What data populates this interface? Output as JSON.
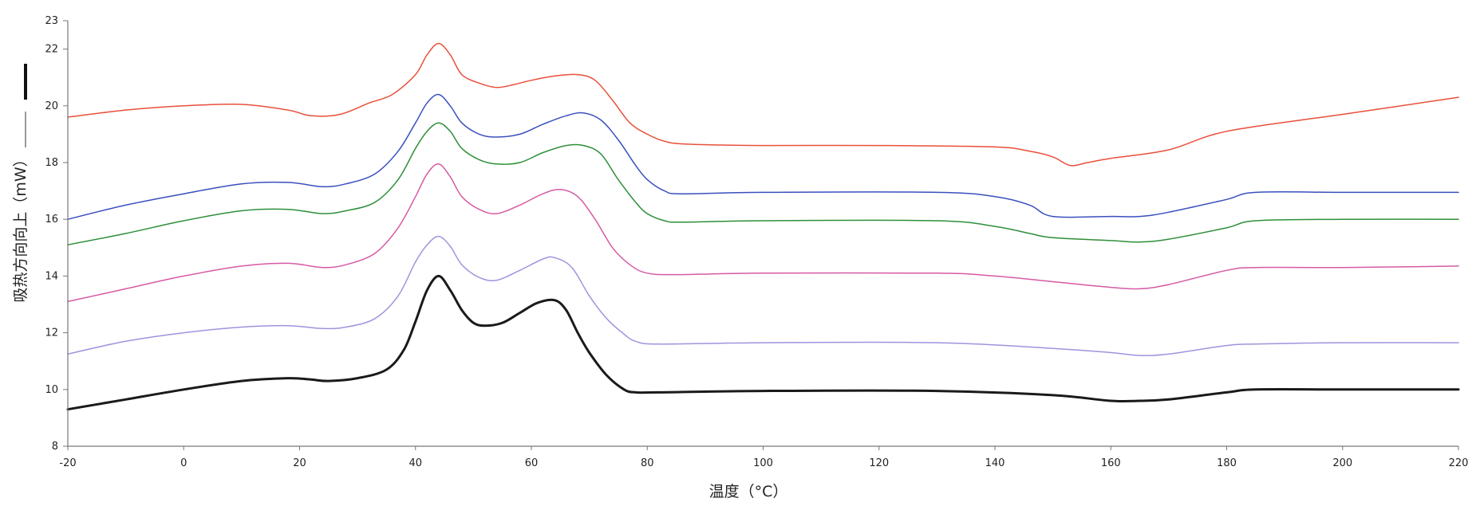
{
  "chart_data": {
    "type": "line",
    "title": "",
    "xlabel": "温度（°C）",
    "ylabel": "吸热方向向上（mW）",
    "xlim": [
      -20,
      220
    ],
    "ylim": [
      8,
      23
    ],
    "x_ticks": [
      -20,
      0,
      20,
      40,
      60,
      80,
      100,
      120,
      140,
      160,
      180,
      200,
      220
    ],
    "y_ticks": [
      8,
      10,
      12,
      14,
      16,
      18,
      20,
      22,
      23
    ],
    "grid": false,
    "legend": "none",
    "series": [
      {
        "color": "#e8503a",
        "stroke": 1.5,
        "x": [
          -20,
          -10,
          0,
          10,
          18,
          22,
          27,
          32,
          36,
          40,
          42,
          44,
          46,
          48,
          51,
          54,
          57,
          60,
          64,
          68,
          71,
          74,
          77,
          80,
          83,
          87,
          100,
          120,
          140,
          146,
          150,
          153,
          156,
          160,
          170,
          180,
          200,
          220
        ],
        "y": [
          19.6,
          19.85,
          20.0,
          20.05,
          19.85,
          19.65,
          19.7,
          20.1,
          20.4,
          21.1,
          21.8,
          22.2,
          21.8,
          21.1,
          20.8,
          20.65,
          20.75,
          20.9,
          21.05,
          21.1,
          20.9,
          20.2,
          19.4,
          19.0,
          18.75,
          18.65,
          18.6,
          18.6,
          18.55,
          18.4,
          18.2,
          17.9,
          18.0,
          18.15,
          18.45,
          19.1,
          19.7,
          20.3
        ]
      },
      {
        "color": "#3a4fbf",
        "stroke": 1.5,
        "x": [
          -20,
          -10,
          0,
          10,
          18,
          24,
          28,
          33,
          37,
          40,
          42,
          44,
          46,
          48,
          51,
          54,
          58,
          62,
          66,
          69,
          72,
          75,
          78,
          80,
          83,
          86,
          100,
          130,
          140,
          146,
          150,
          160,
          165,
          170,
          180,
          185,
          200,
          220
        ],
        "y": [
          16.0,
          16.5,
          16.9,
          17.25,
          17.3,
          17.15,
          17.25,
          17.6,
          18.4,
          19.4,
          20.1,
          20.4,
          20.0,
          19.4,
          19.0,
          18.9,
          19.0,
          19.35,
          19.65,
          19.75,
          19.5,
          18.8,
          17.9,
          17.4,
          17.0,
          16.9,
          16.95,
          16.95,
          16.8,
          16.5,
          16.1,
          16.1,
          16.1,
          16.25,
          16.7,
          16.95,
          16.95,
          16.95
        ]
      },
      {
        "color": "#2e8f3a",
        "stroke": 1.5,
        "x": [
          -20,
          -10,
          0,
          10,
          18,
          24,
          28,
          33,
          37,
          40,
          42,
          44,
          46,
          48,
          51,
          54,
          58,
          62,
          66,
          69,
          72,
          75,
          78,
          80,
          83,
          86,
          100,
          130,
          140,
          146,
          150,
          160,
          165,
          170,
          180,
          185,
          200,
          220
        ],
        "y": [
          15.1,
          15.5,
          15.95,
          16.3,
          16.35,
          16.2,
          16.3,
          16.6,
          17.4,
          18.5,
          19.1,
          19.4,
          19.1,
          18.5,
          18.1,
          17.95,
          18.0,
          18.35,
          18.6,
          18.6,
          18.3,
          17.4,
          16.6,
          16.2,
          15.95,
          15.9,
          15.95,
          15.95,
          15.75,
          15.5,
          15.35,
          15.25,
          15.2,
          15.3,
          15.7,
          15.95,
          16.0,
          16.0
        ]
      },
      {
        "color": "#d65aa5",
        "stroke": 1.5,
        "x": [
          -20,
          -10,
          0,
          10,
          18,
          24,
          28,
          33,
          37,
          40,
          42,
          44,
          46,
          48,
          51,
          54,
          58,
          62,
          65,
          68,
          71,
          74,
          77,
          80,
          85,
          100,
          130,
          140,
          150,
          160,
          165,
          170,
          180,
          185,
          200,
          220
        ],
        "y": [
          13.1,
          13.55,
          14.0,
          14.35,
          14.45,
          14.3,
          14.4,
          14.8,
          15.7,
          16.8,
          17.6,
          17.95,
          17.5,
          16.8,
          16.35,
          16.2,
          16.5,
          16.9,
          17.05,
          16.8,
          16.0,
          15.0,
          14.4,
          14.1,
          14.05,
          14.1,
          14.1,
          14.0,
          13.8,
          13.6,
          13.55,
          13.7,
          14.2,
          14.3,
          14.3,
          14.35
        ]
      },
      {
        "color": "#9c95dd",
        "stroke": 1.5,
        "x": [
          -20,
          -10,
          0,
          10,
          18,
          24,
          28,
          33,
          37,
          40,
          42,
          44,
          46,
          48,
          51,
          54,
          58,
          62,
          64,
          67,
          70,
          73,
          76,
          78,
          82,
          100,
          130,
          150,
          160,
          165,
          170,
          180,
          185,
          200,
          220
        ],
        "y": [
          11.25,
          11.7,
          12.0,
          12.2,
          12.25,
          12.15,
          12.2,
          12.5,
          13.3,
          14.5,
          15.1,
          15.4,
          15.05,
          14.4,
          13.95,
          13.85,
          14.2,
          14.6,
          14.65,
          14.3,
          13.3,
          12.5,
          11.95,
          11.7,
          11.6,
          11.65,
          11.65,
          11.45,
          11.3,
          11.2,
          11.25,
          11.55,
          11.6,
          11.65,
          11.65
        ]
      },
      {
        "color": "#1a1a1a",
        "stroke": 3,
        "x": [
          -20,
          -10,
          0,
          10,
          18,
          22,
          25,
          30,
          35,
          38,
          40,
          42,
          44,
          46,
          48,
          50,
          52,
          55,
          58,
          61,
          64,
          66,
          68,
          70,
          73,
          76,
          78,
          82,
          100,
          130,
          150,
          160,
          165,
          170,
          180,
          185,
          200,
          220
        ],
        "y": [
          9.3,
          9.65,
          10.0,
          10.3,
          10.4,
          10.35,
          10.3,
          10.4,
          10.7,
          11.4,
          12.4,
          13.5,
          14.0,
          13.5,
          12.8,
          12.35,
          12.25,
          12.35,
          12.7,
          13.05,
          13.15,
          12.8,
          12.0,
          11.3,
          10.5,
          10.0,
          9.9,
          9.9,
          9.95,
          9.95,
          9.8,
          9.6,
          9.6,
          9.65,
          9.9,
          10.0,
          10.0,
          10.0
        ]
      }
    ]
  }
}
